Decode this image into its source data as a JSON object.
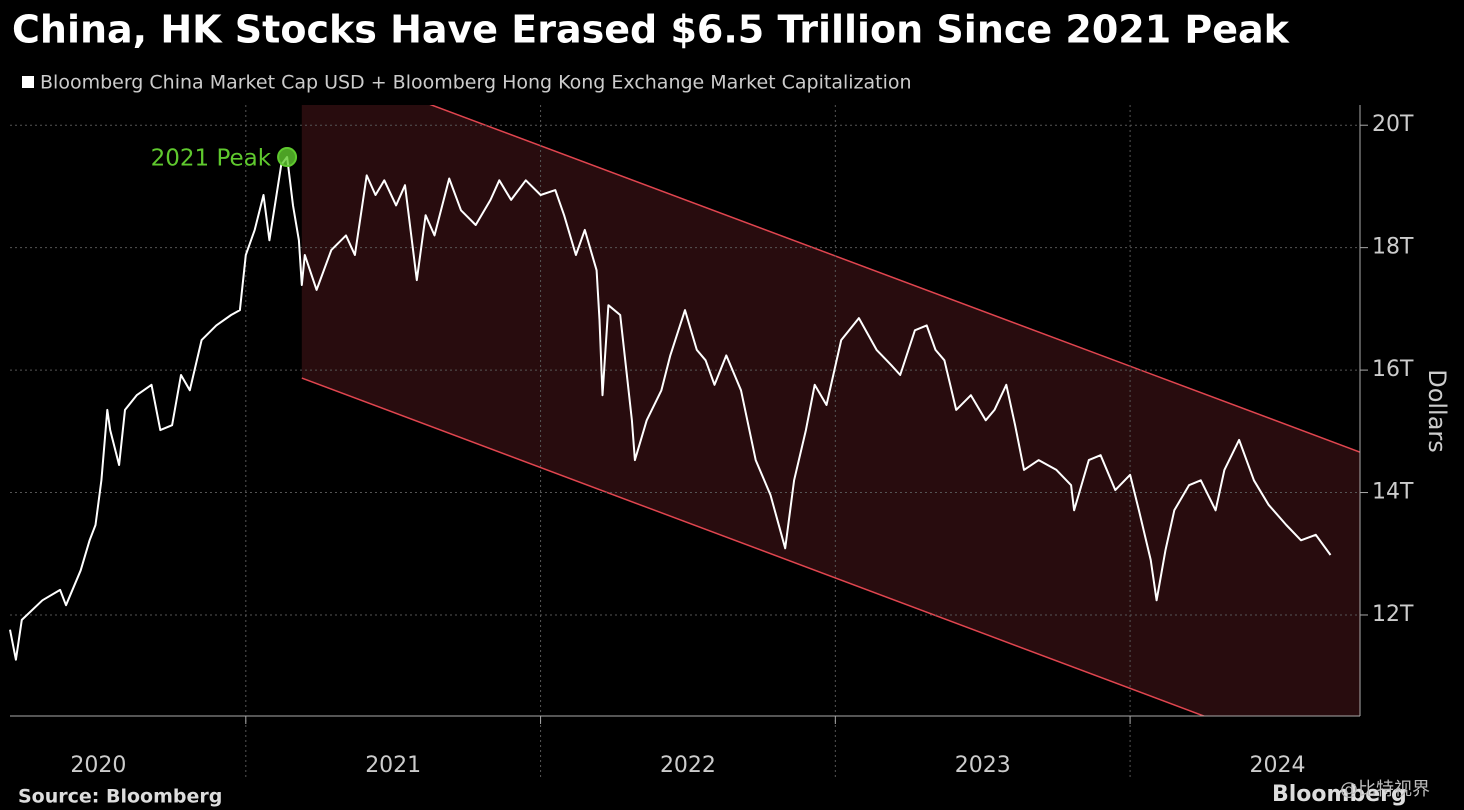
{
  "chart_data": {
    "type": "line",
    "title": "China, HK Stocks Have Erased $6.5 Trillion Since 2021 Peak",
    "y_axis_label": "Dollars",
    "source": "Source: Bloomberg",
    "logo": "Bloomberg",
    "watermark": "@比特视界",
    "series": [
      {
        "name": "Bloomberg China Market Cap USD + Bloomberg Hong Kong Exchange Market Capitalization",
        "color": "#ffffff",
        "x": [
          2020.2,
          2020.22,
          2020.24,
          2020.31,
          2020.37,
          2020.39,
          2020.44,
          2020.47,
          2020.49,
          2020.51,
          2020.53,
          2020.54,
          2020.57,
          2020.59,
          2020.63,
          2020.68,
          2020.71,
          2020.75,
          2020.78,
          2020.81,
          2020.85,
          2020.9,
          2020.95,
          2020.98,
          2021.0,
          2021.03,
          2021.06,
          2021.08,
          2021.12,
          2021.14,
          2021.16,
          2021.18,
          2021.19,
          2021.2,
          2021.24,
          2021.29,
          2021.34,
          2021.37,
          2021.41,
          2021.44,
          2021.47,
          2021.51,
          2021.54,
          2021.58,
          2021.61,
          2021.64,
          2021.69,
          2021.73,
          2021.78,
          2021.83,
          2021.86,
          2021.9,
          2021.95,
          2022.0,
          2022.05,
          2022.08,
          2022.12,
          2022.15,
          2022.19,
          2022.2,
          2022.21,
          2022.23,
          2022.27,
          2022.31,
          2022.32,
          2022.36,
          2022.41,
          2022.44,
          2022.49,
          2022.53,
          2022.56,
          2022.59,
          2022.63,
          2022.68,
          2022.73,
          2022.78,
          2022.83,
          2022.86,
          2022.9,
          2022.93,
          2022.97,
          2023.02,
          2023.08,
          2023.14,
          2023.19,
          2023.22,
          2023.27,
          2023.31,
          2023.34,
          2023.37,
          2023.41,
          2023.46,
          2023.51,
          2023.54,
          2023.58,
          2023.61,
          2023.64,
          2023.69,
          2023.75,
          2023.8,
          2023.81,
          2023.86,
          2023.9,
          2023.95,
          2024.0,
          2024.03,
          2024.07,
          2024.09,
          2024.12,
          2024.15,
          2024.2,
          2024.24,
          2024.29,
          2024.32,
          2024.37,
          2024.42,
          2024.47,
          2024.53,
          2024.58,
          2024.63,
          2024.68
        ],
        "values": [
          11.76,
          11.27,
          11.92,
          12.24,
          12.41,
          12.16,
          12.73,
          13.22,
          13.47,
          14.2,
          15.35,
          15.02,
          14.45,
          15.35,
          15.59,
          15.76,
          15.02,
          15.1,
          15.92,
          15.67,
          16.49,
          16.73,
          16.9,
          16.98,
          17.88,
          18.29,
          18.86,
          18.12,
          19.35,
          19.48,
          18.69,
          18.12,
          17.39,
          17.88,
          17.31,
          17.96,
          18.2,
          17.88,
          19.18,
          18.86,
          19.1,
          18.69,
          19.02,
          17.47,
          18.53,
          18.2,
          19.13,
          18.61,
          18.37,
          18.78,
          19.1,
          18.78,
          19.1,
          18.86,
          18.94,
          18.53,
          17.88,
          18.29,
          17.63,
          16.82,
          15.59,
          17.06,
          16.9,
          15.18,
          14.53,
          15.18,
          15.67,
          16.24,
          16.98,
          16.33,
          16.16,
          15.76,
          16.24,
          15.67,
          14.53,
          13.96,
          13.09,
          14.2,
          15.02,
          15.76,
          15.43,
          16.49,
          16.85,
          16.33,
          16.08,
          15.92,
          16.65,
          16.73,
          16.33,
          16.16,
          15.35,
          15.59,
          15.18,
          15.35,
          15.76,
          15.1,
          14.37,
          14.53,
          14.37,
          14.12,
          13.71,
          14.53,
          14.61,
          14.04,
          14.29,
          13.71,
          12.9,
          12.24,
          13.06,
          13.71,
          14.12,
          14.2,
          13.71,
          14.37,
          14.86,
          14.2,
          13.8,
          13.47,
          13.22,
          13.31,
          12.98
        ]
      }
    ],
    "annotation": {
      "label": "2021 Peak",
      "x": 2021.14,
      "y": 19.48,
      "color": "#5fc92e"
    },
    "channel": {
      "color": "#e0454f",
      "upper": [
        [
          2021.63,
          20.33
        ],
        [
          2024.78,
          14.66
        ]
      ],
      "lower": [
        [
          2021.19,
          15.87
        ],
        [
          2024.25,
          10.35
        ]
      ]
    },
    "xlim": [
      2020.2,
      2024.78
    ],
    "xticks": [
      {
        "value": 2020.5,
        "label": "2020"
      },
      {
        "value": 2021.5,
        "label": "2021"
      },
      {
        "value": 2022.5,
        "label": "2022"
      },
      {
        "value": 2023.5,
        "label": "2023"
      },
      {
        "value": 2024.5,
        "label": "2024"
      }
    ],
    "ylim": [
      10.35,
      20.33
    ],
    "yticks": [
      {
        "value": 12,
        "label": "12T"
      },
      {
        "value": 14,
        "label": "14T"
      },
      {
        "value": 16,
        "label": "16T"
      },
      {
        "value": 18,
        "label": "18T"
      },
      {
        "value": 20,
        "label": "20T"
      }
    ],
    "grid": true
  }
}
